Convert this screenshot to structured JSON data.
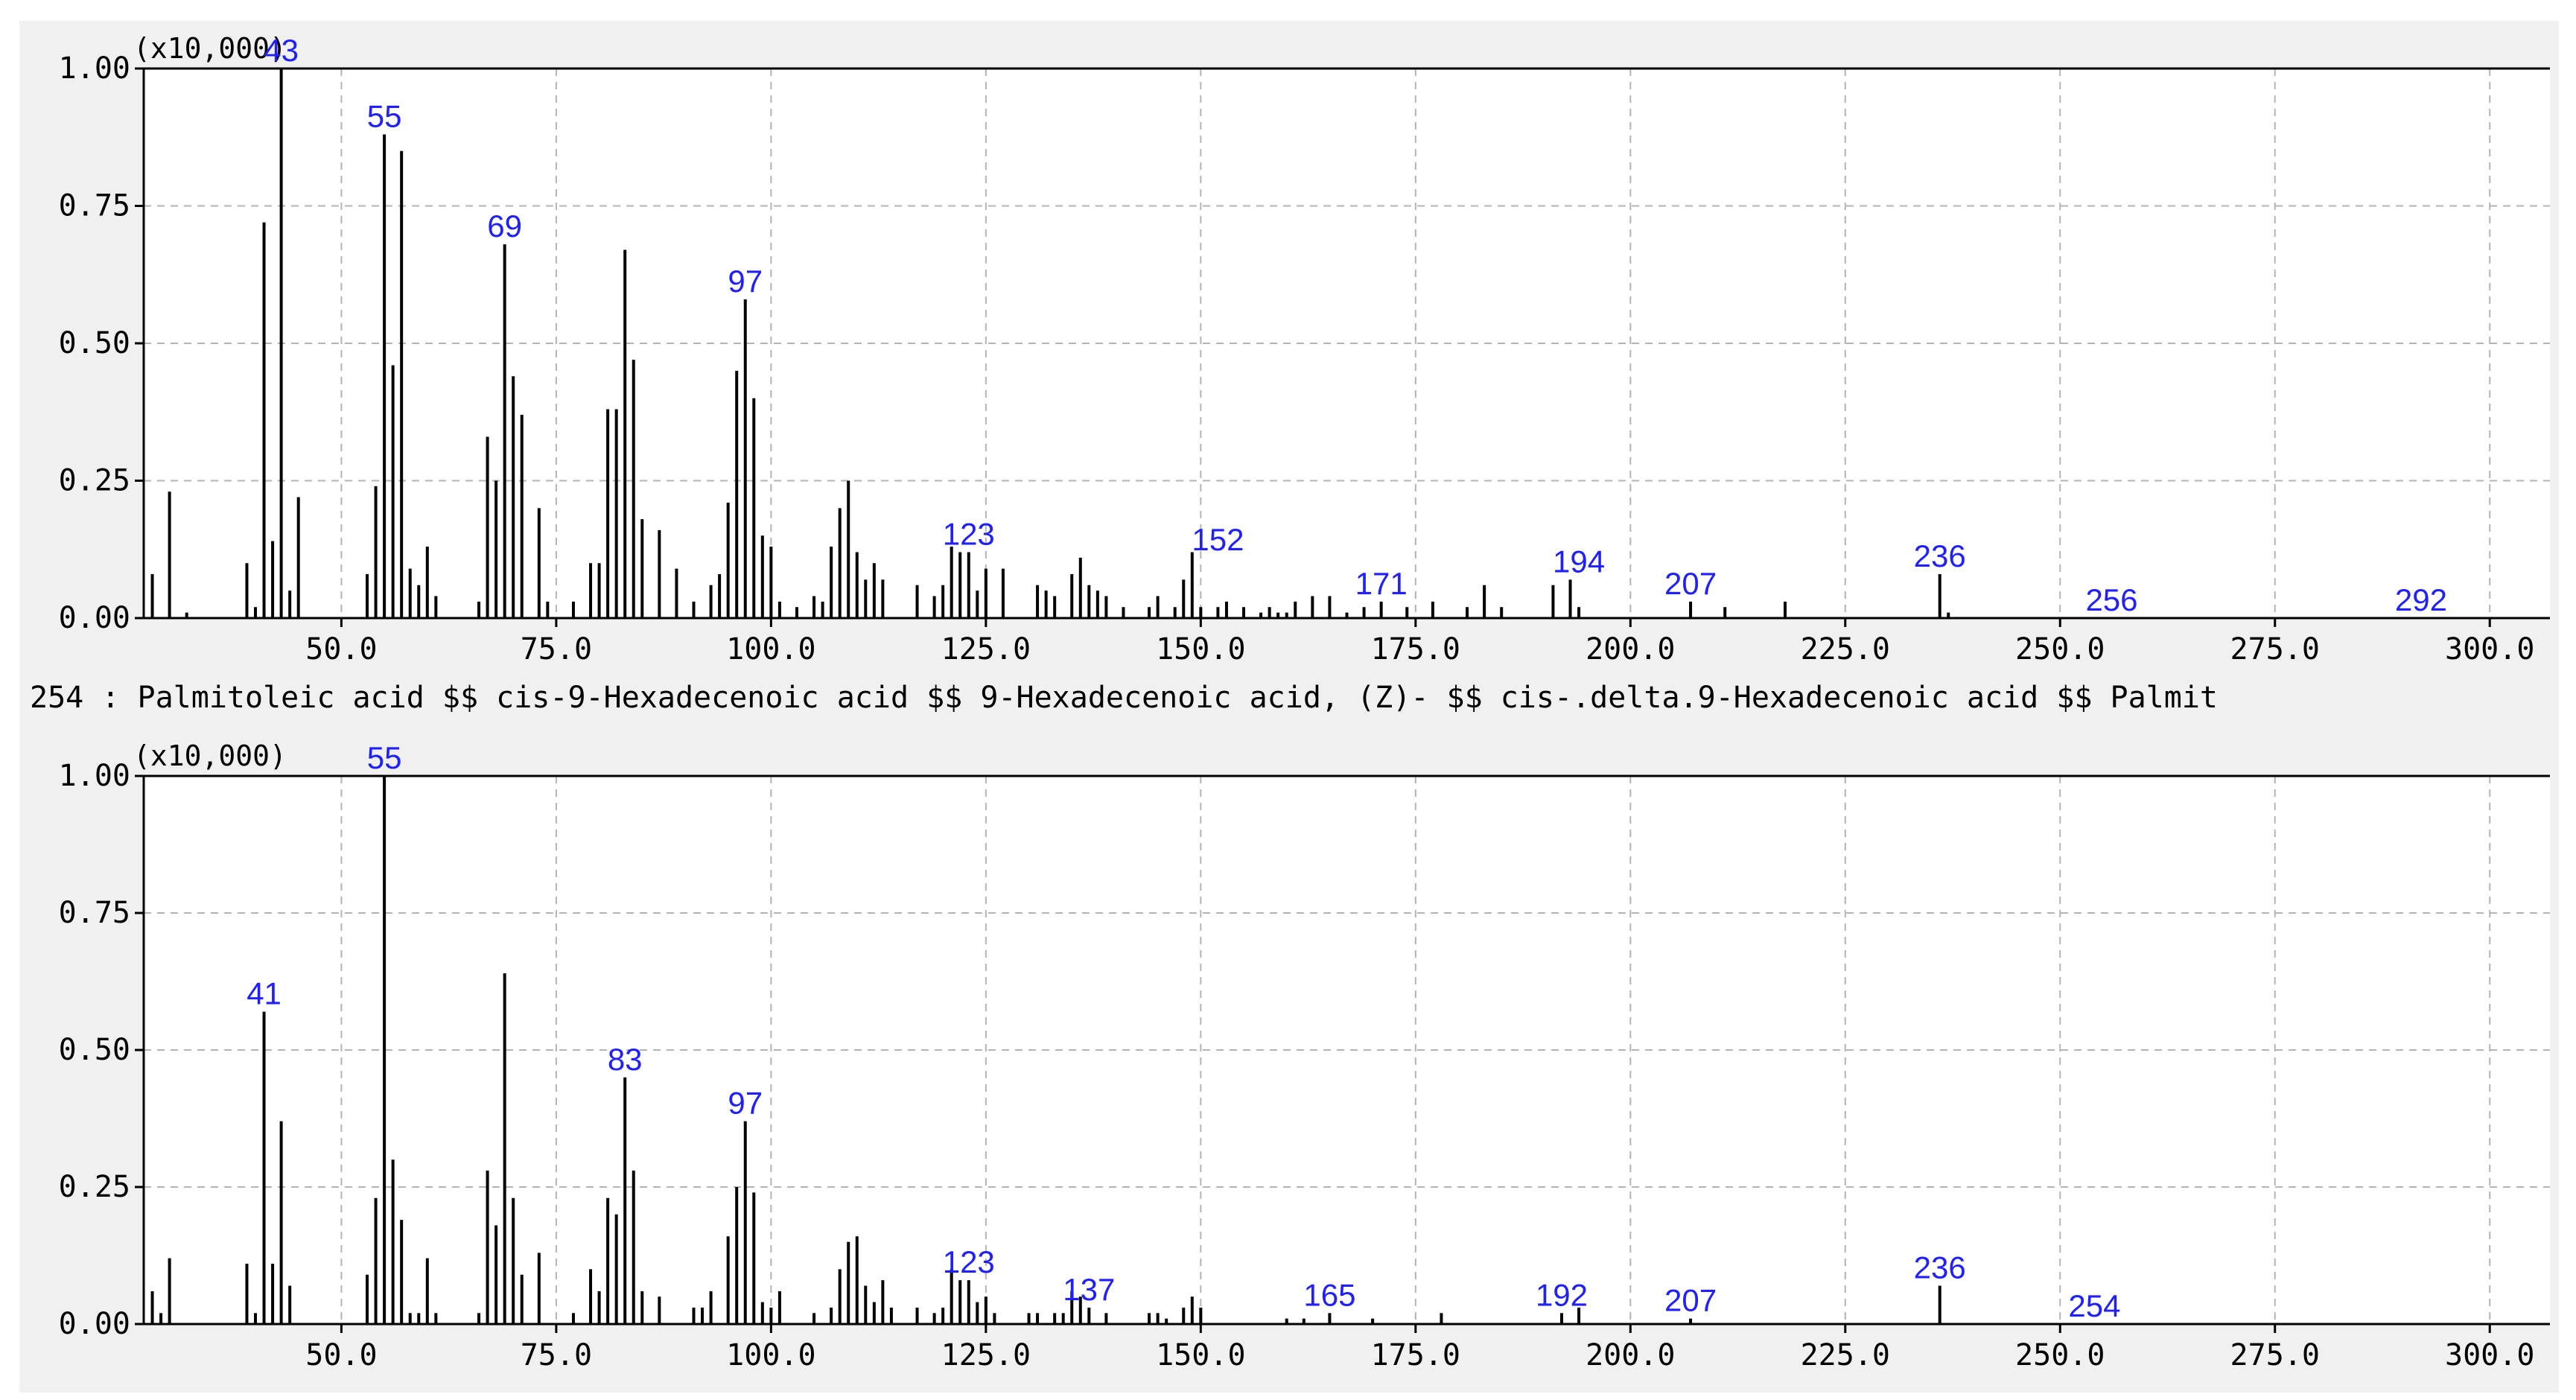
{
  "colors": {
    "bars": "#000000",
    "peak_labels": "#2020ff",
    "grid": "#b4b4b4",
    "panel": "#f0f0f0"
  },
  "caption": "254 : Palmitoleic acid $$ cis-9-Hexadecenoic acid $$ 9-Hexadecenoic acid, (Z)- $$ cis-.delta.9-Hexadecenoic acid $$ Palmit",
  "chart_data": [
    {
      "type": "bar",
      "scale_label": "(x10,000)",
      "xlim": [
        27,
        307
      ],
      "ylim": [
        0,
        1.0
      ],
      "grid": true,
      "x_ticks": [
        50,
        75,
        100,
        125,
        150,
        175,
        200,
        225,
        250,
        275,
        300
      ],
      "x_tick_labels": [
        "50.0",
        "75.0",
        "100.0",
        "125.0",
        "150.0",
        "175.0",
        "200.0",
        "225.0",
        "250.0",
        "275.0",
        "300.0"
      ],
      "y_ticks": [
        0,
        0.25,
        0.5,
        0.75,
        1.0
      ],
      "y_tick_labels": [
        "0.00",
        "0.25",
        "0.50",
        "0.75",
        "1.00"
      ],
      "peaks": [
        [
          28,
          0.08
        ],
        [
          30,
          0.23
        ],
        [
          32,
          0.01
        ],
        [
          39,
          0.1
        ],
        [
          40,
          0.02
        ],
        [
          41,
          0.72
        ],
        [
          42,
          0.14
        ],
        [
          43,
          1.0
        ],
        [
          44,
          0.05
        ],
        [
          45,
          0.22
        ],
        [
          53,
          0.08
        ],
        [
          54,
          0.24
        ],
        [
          55,
          0.88
        ],
        [
          56,
          0.46
        ],
        [
          57,
          0.85
        ],
        [
          58,
          0.09
        ],
        [
          59,
          0.06
        ],
        [
          60,
          0.13
        ],
        [
          61,
          0.04
        ],
        [
          66,
          0.03
        ],
        [
          67,
          0.33
        ],
        [
          68,
          0.25
        ],
        [
          69,
          0.68
        ],
        [
          70,
          0.44
        ],
        [
          71,
          0.37
        ],
        [
          73,
          0.2
        ],
        [
          74,
          0.03
        ],
        [
          77,
          0.03
        ],
        [
          79,
          0.1
        ],
        [
          80,
          0.1
        ],
        [
          81,
          0.38
        ],
        [
          82,
          0.38
        ],
        [
          83,
          0.67
        ],
        [
          84,
          0.47
        ],
        [
          85,
          0.18
        ],
        [
          87,
          0.16
        ],
        [
          89,
          0.09
        ],
        [
          91,
          0.03
        ],
        [
          93,
          0.06
        ],
        [
          94,
          0.08
        ],
        [
          95,
          0.21
        ],
        [
          96,
          0.45
        ],
        [
          97,
          0.58
        ],
        [
          98,
          0.4
        ],
        [
          99,
          0.15
        ],
        [
          100,
          0.13
        ],
        [
          101,
          0.03
        ],
        [
          103,
          0.02
        ],
        [
          105,
          0.04
        ],
        [
          106,
          0.03
        ],
        [
          107,
          0.13
        ],
        [
          108,
          0.2
        ],
        [
          109,
          0.25
        ],
        [
          110,
          0.12
        ],
        [
          111,
          0.07
        ],
        [
          112,
          0.1
        ],
        [
          113,
          0.07
        ],
        [
          117,
          0.06
        ],
        [
          119,
          0.04
        ],
        [
          120,
          0.06
        ],
        [
          121,
          0.13
        ],
        [
          122,
          0.12
        ],
        [
          123,
          0.12
        ],
        [
          124,
          0.05
        ],
        [
          125,
          0.09
        ],
        [
          127,
          0.09
        ],
        [
          131,
          0.06
        ],
        [
          132,
          0.05
        ],
        [
          133,
          0.04
        ],
        [
          135,
          0.08
        ],
        [
          136,
          0.11
        ],
        [
          137,
          0.06
        ],
        [
          138,
          0.05
        ],
        [
          139,
          0.04
        ],
        [
          141,
          0.02
        ],
        [
          144,
          0.02
        ],
        [
          145,
          0.04
        ],
        [
          147,
          0.02
        ],
        [
          148,
          0.07
        ],
        [
          149,
          0.12
        ],
        [
          150,
          0.02
        ],
        [
          152,
          0.02
        ],
        [
          153,
          0.03
        ],
        [
          155,
          0.02
        ],
        [
          157,
          0.01
        ],
        [
          158,
          0.02
        ],
        [
          159,
          0.01
        ],
        [
          160,
          0.01
        ],
        [
          161,
          0.03
        ],
        [
          163,
          0.04
        ],
        [
          165,
          0.04
        ],
        [
          167,
          0.01
        ],
        [
          169,
          0.02
        ],
        [
          171,
          0.03
        ],
        [
          174,
          0.02
        ],
        [
          177,
          0.03
        ],
        [
          181,
          0.02
        ],
        [
          183,
          0.06
        ],
        [
          185,
          0.02
        ],
        [
          191,
          0.06
        ],
        [
          193,
          0.07
        ],
        [
          194,
          0.02
        ],
        [
          207,
          0.03
        ],
        [
          211,
          0.02
        ],
        [
          218,
          0.03
        ],
        [
          236,
          0.08
        ],
        [
          237,
          0.01
        ]
      ],
      "labels": [
        {
          "text": "43",
          "x": 43,
          "y": 1.0
        },
        {
          "text": "55",
          "x": 55,
          "y": 0.88
        },
        {
          "text": "69",
          "x": 69,
          "y": 0.68
        },
        {
          "text": "97",
          "x": 97,
          "y": 0.58
        },
        {
          "text": "123",
          "x": 123,
          "y": 0.12
        },
        {
          "text": "152",
          "x": 152,
          "y": 0.11
        },
        {
          "text": "171",
          "x": 171,
          "y": 0.03
        },
        {
          "text": "194",
          "x": 194,
          "y": 0.07
        },
        {
          "text": "207",
          "x": 207,
          "y": 0.03
        },
        {
          "text": "236",
          "x": 236,
          "y": 0.08
        },
        {
          "text": "256",
          "x": 256,
          "y": 0.0
        },
        {
          "text": "292",
          "x": 292,
          "y": 0.0
        }
      ]
    },
    {
      "type": "bar",
      "scale_label": "(x10,000)",
      "xlim": [
        27,
        307
      ],
      "ylim": [
        0,
        1.0
      ],
      "grid": true,
      "x_ticks": [
        50,
        75,
        100,
        125,
        150,
        175,
        200,
        225,
        250,
        275,
        300
      ],
      "x_tick_labels": [
        "50.0",
        "75.0",
        "100.0",
        "125.0",
        "150.0",
        "175.0",
        "200.0",
        "225.0",
        "250.0",
        "275.0",
        "300.0"
      ],
      "y_ticks": [
        0,
        0.25,
        0.5,
        0.75,
        1.0
      ],
      "y_tick_labels": [
        "0.00",
        "0.25",
        "0.50",
        "0.75",
        "1.00"
      ],
      "peaks": [
        [
          28,
          0.06
        ],
        [
          29,
          0.02
        ],
        [
          30,
          0.12
        ],
        [
          39,
          0.11
        ],
        [
          40,
          0.02
        ],
        [
          41,
          0.57
        ],
        [
          42,
          0.11
        ],
        [
          43,
          0.37
        ],
        [
          44,
          0.07
        ],
        [
          53,
          0.09
        ],
        [
          54,
          0.23
        ],
        [
          55,
          1.0
        ],
        [
          56,
          0.3
        ],
        [
          57,
          0.19
        ],
        [
          58,
          0.02
        ],
        [
          59,
          0.02
        ],
        [
          60,
          0.12
        ],
        [
          61,
          0.02
        ],
        [
          66,
          0.02
        ],
        [
          67,
          0.28
        ],
        [
          68,
          0.18
        ],
        [
          69,
          0.64
        ],
        [
          70,
          0.23
        ],
        [
          71,
          0.09
        ],
        [
          73,
          0.13
        ],
        [
          77,
          0.02
        ],
        [
          79,
          0.1
        ],
        [
          80,
          0.06
        ],
        [
          81,
          0.23
        ],
        [
          82,
          0.2
        ],
        [
          83,
          0.45
        ],
        [
          84,
          0.28
        ],
        [
          85,
          0.06
        ],
        [
          87,
          0.05
        ],
        [
          91,
          0.03
        ],
        [
          92,
          0.03
        ],
        [
          93,
          0.06
        ],
        [
          95,
          0.16
        ],
        [
          96,
          0.25
        ],
        [
          97,
          0.37
        ],
        [
          98,
          0.24
        ],
        [
          99,
          0.04
        ],
        [
          100,
          0.03
        ],
        [
          101,
          0.06
        ],
        [
          105,
          0.02
        ],
        [
          107,
          0.03
        ],
        [
          108,
          0.1
        ],
        [
          109,
          0.15
        ],
        [
          110,
          0.16
        ],
        [
          111,
          0.07
        ],
        [
          112,
          0.04
        ],
        [
          113,
          0.08
        ],
        [
          114,
          0.03
        ],
        [
          117,
          0.03
        ],
        [
          119,
          0.02
        ],
        [
          120,
          0.03
        ],
        [
          121,
          0.1
        ],
        [
          122,
          0.08
        ],
        [
          123,
          0.08
        ],
        [
          124,
          0.04
        ],
        [
          125,
          0.05
        ],
        [
          126,
          0.02
        ],
        [
          130,
          0.02
        ],
        [
          131,
          0.02
        ],
        [
          133,
          0.02
        ],
        [
          134,
          0.02
        ],
        [
          135,
          0.06
        ],
        [
          136,
          0.05
        ],
        [
          137,
          0.03
        ],
        [
          139,
          0.02
        ],
        [
          144,
          0.02
        ],
        [
          145,
          0.02
        ],
        [
          146,
          0.01
        ],
        [
          148,
          0.03
        ],
        [
          149,
          0.05
        ],
        [
          150,
          0.03
        ],
        [
          160,
          0.01
        ],
        [
          162,
          0.01
        ],
        [
          165,
          0.02
        ],
        [
          170,
          0.01
        ],
        [
          178,
          0.02
        ],
        [
          192,
          0.02
        ],
        [
          194,
          0.03
        ],
        [
          207,
          0.01
        ],
        [
          236,
          0.07
        ]
      ],
      "labels": [
        {
          "text": "41",
          "x": 41,
          "y": 0.57
        },
        {
          "text": "55",
          "x": 55,
          "y": 1.0
        },
        {
          "text": "83",
          "x": 83,
          "y": 0.45
        },
        {
          "text": "97",
          "x": 97,
          "y": 0.37
        },
        {
          "text": "123",
          "x": 123,
          "y": 0.08
        },
        {
          "text": "137",
          "x": 137,
          "y": 0.03
        },
        {
          "text": "165",
          "x": 165,
          "y": 0.02
        },
        {
          "text": "192",
          "x": 192,
          "y": 0.02
        },
        {
          "text": "207",
          "x": 207,
          "y": 0.01
        },
        {
          "text": "236",
          "x": 236,
          "y": 0.07
        },
        {
          "text": "254",
          "x": 254,
          "y": 0.0
        }
      ]
    }
  ]
}
